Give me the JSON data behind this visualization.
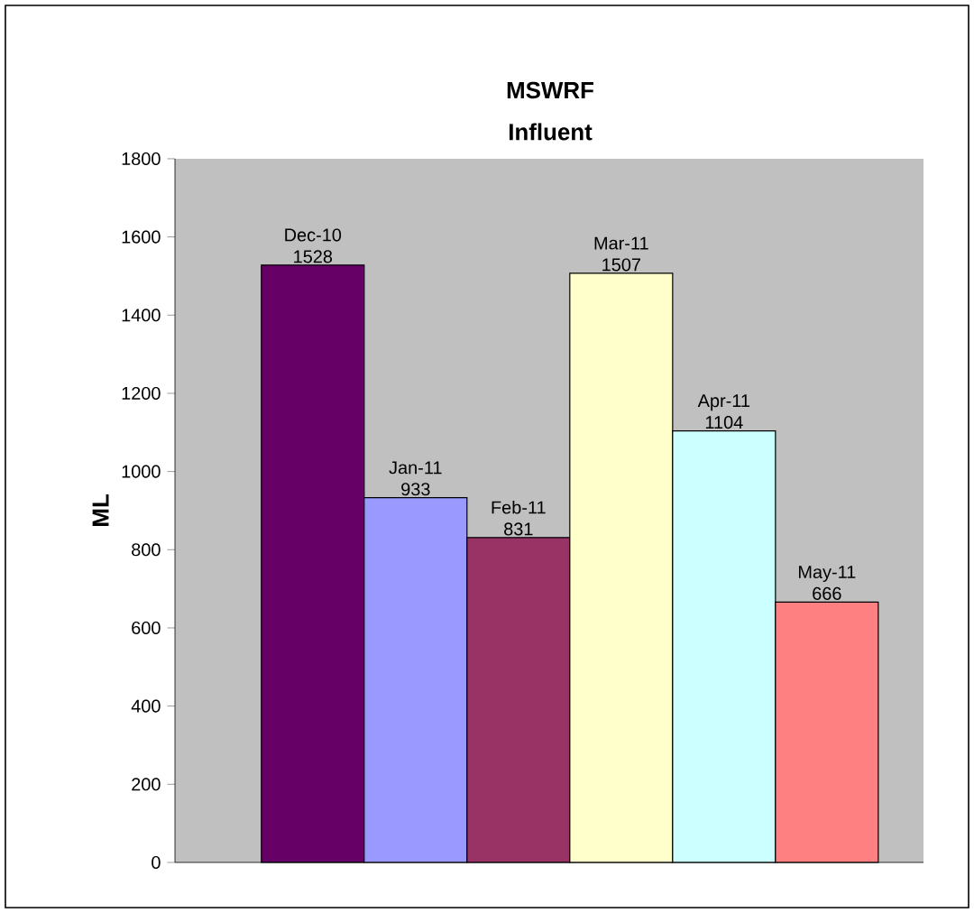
{
  "chart_data": {
    "type": "bar",
    "title": "MSWRF",
    "subtitle": "Influent",
    "ylabel": "ML",
    "categories": [
      "Dec-10",
      "Jan-11",
      "Feb-11",
      "Mar-11",
      "Apr-11",
      "May-11"
    ],
    "values": [
      1528,
      933,
      831,
      1507,
      1104,
      666
    ],
    "colors": [
      "#660066",
      "#9999ff",
      "#993366",
      "#ffffcc",
      "#ccffff",
      "#ff8080"
    ],
    "ylim": [
      0,
      1800
    ],
    "yticks": [
      0,
      200,
      400,
      600,
      800,
      1000,
      1200,
      1400,
      1600,
      1800
    ],
    "data_labels": true,
    "grid": false
  }
}
